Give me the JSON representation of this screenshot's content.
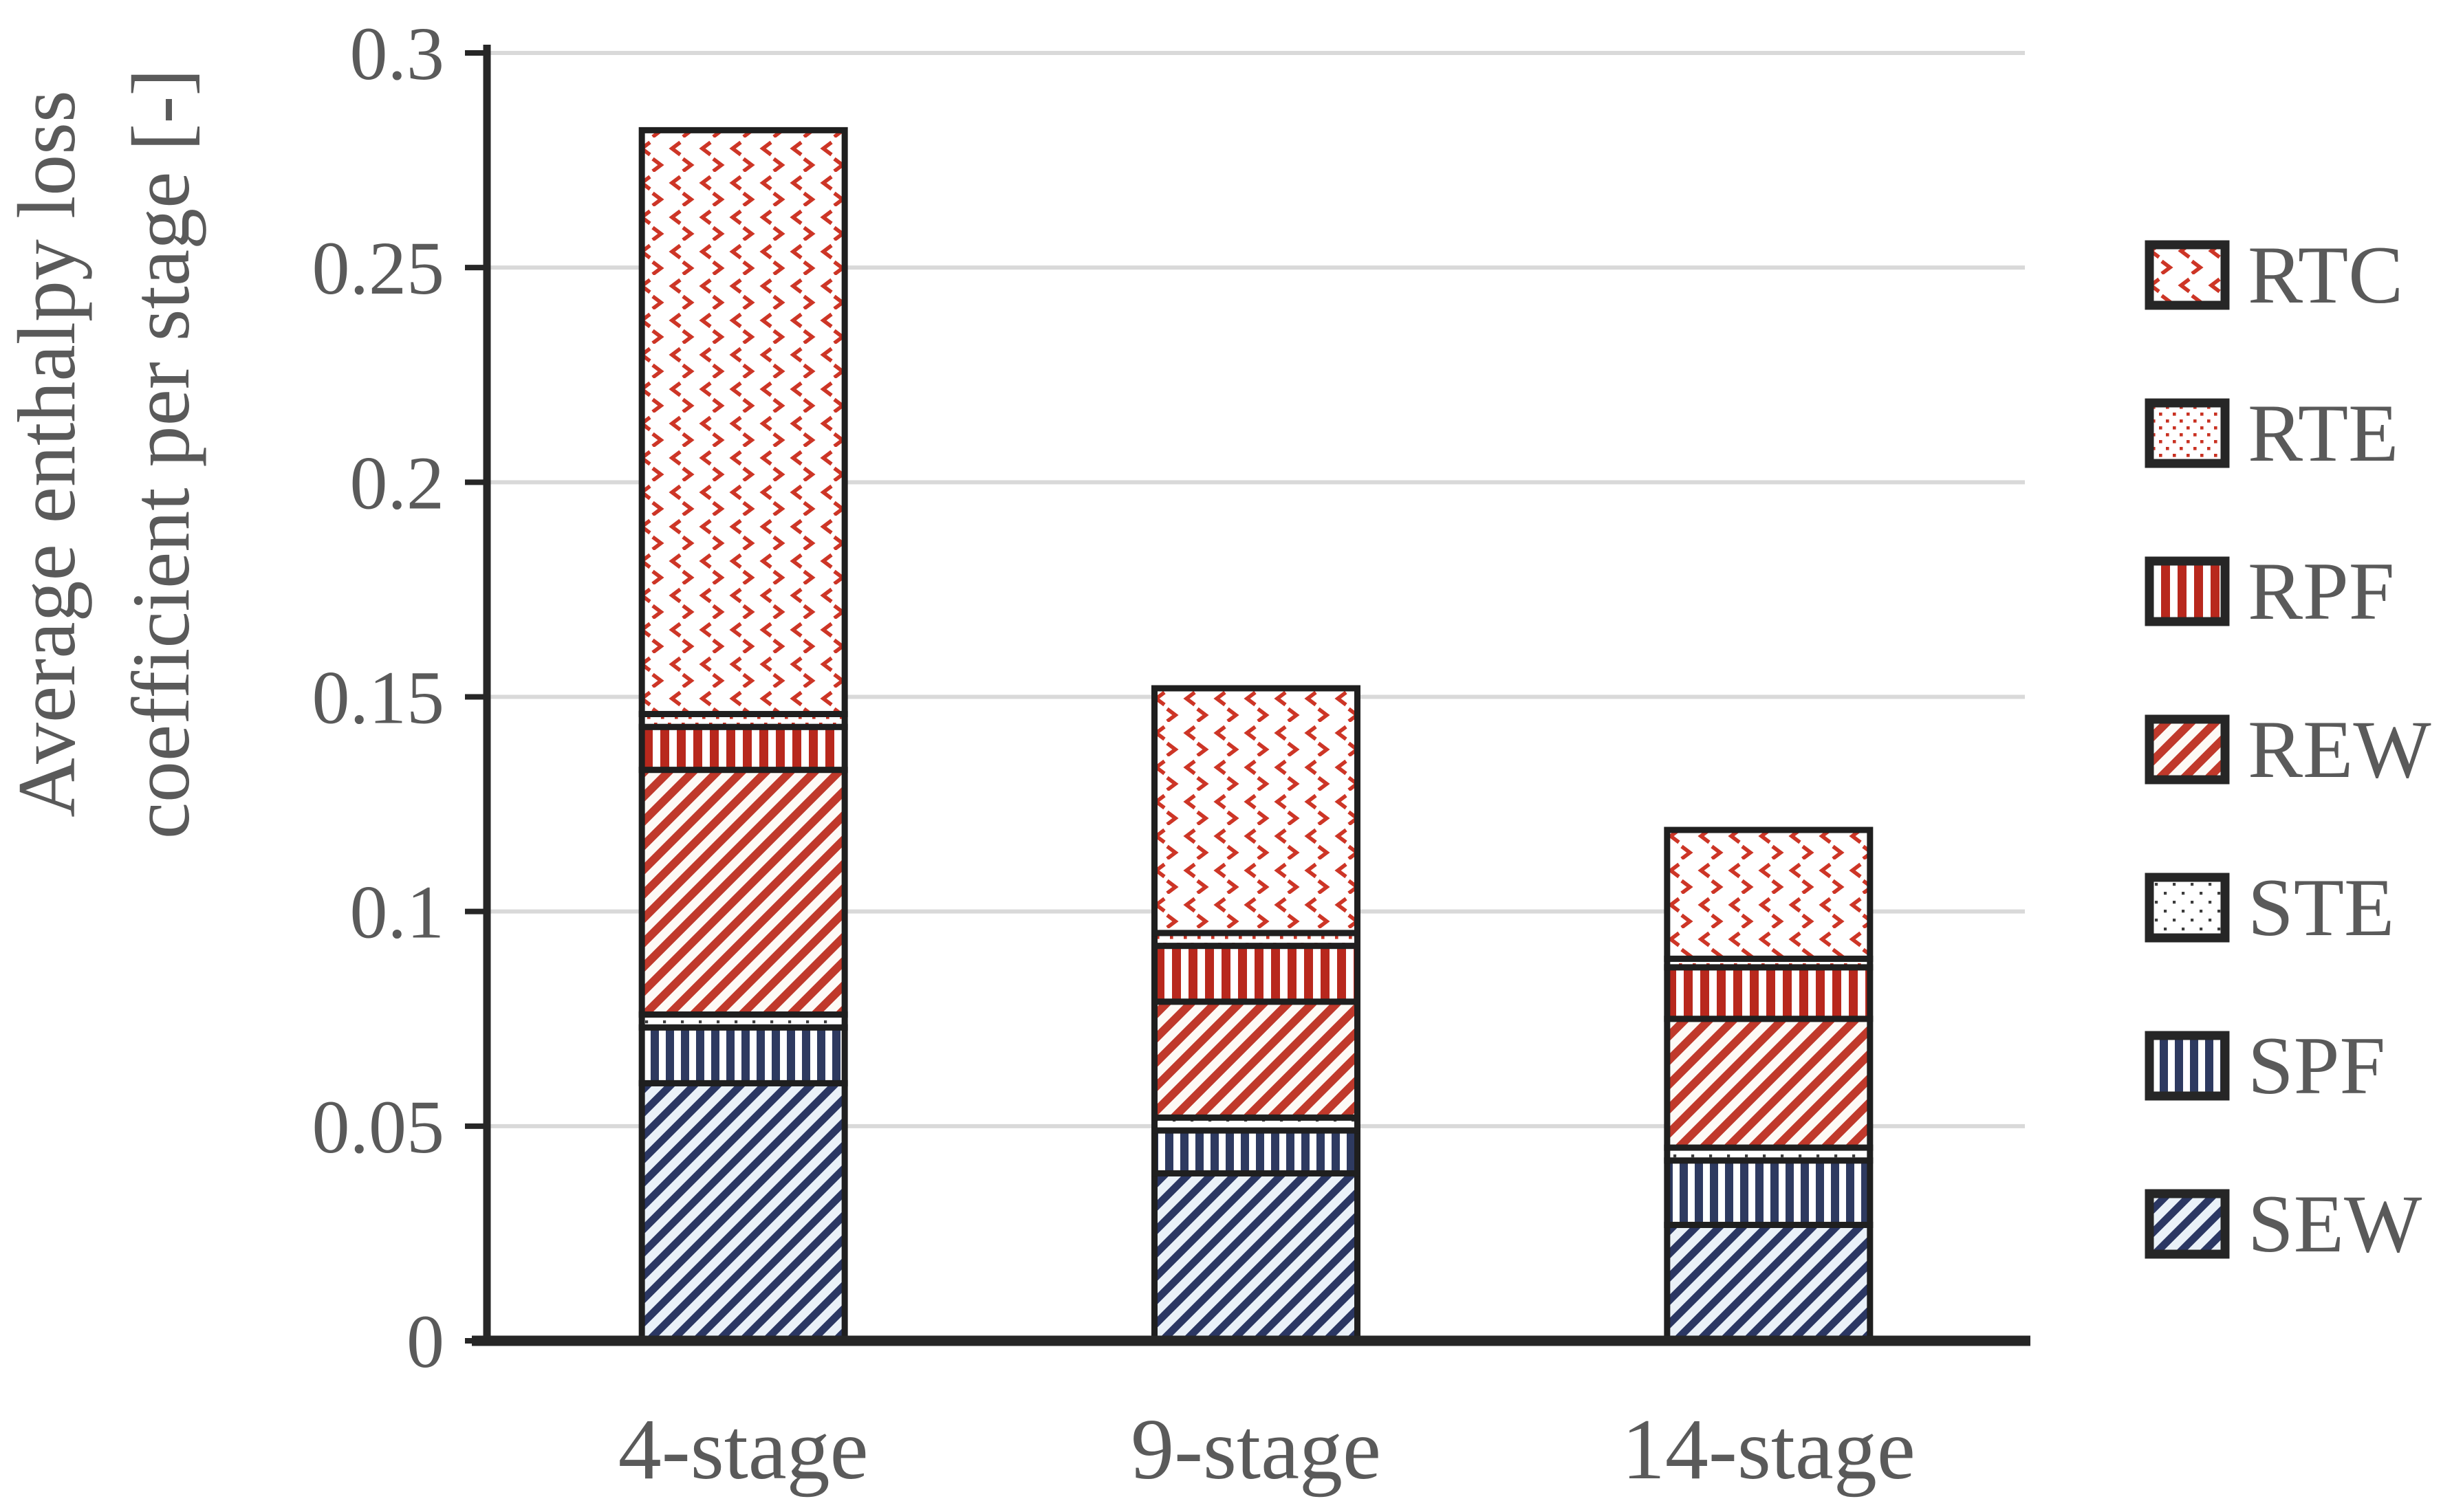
{
  "chart_data": {
    "type": "bar",
    "stacked": true,
    "title": "",
    "xlabel": "",
    "ylabel": "Average enthalpy loss coefficient per stage [-]",
    "ylabel_line1": "Average enthalpy loss",
    "ylabel_line2": "coefficient per stage [-]",
    "categories": [
      "4-stage",
      "9-stage",
      "14-stage"
    ],
    "series": [
      {
        "name": "SEW",
        "pattern": "p-sew",
        "values": [
          0.06,
          0.039,
          0.027
        ]
      },
      {
        "name": "SPF",
        "pattern": "p-spf",
        "values": [
          0.013,
          0.01,
          0.015
        ]
      },
      {
        "name": "STE",
        "pattern": "p-ste",
        "values": [
          0.003,
          0.003,
          0.003
        ]
      },
      {
        "name": "REW",
        "pattern": "p-rew",
        "values": [
          0.057,
          0.027,
          0.03
        ]
      },
      {
        "name": "RPF",
        "pattern": "p-rpf",
        "values": [
          0.01,
          0.013,
          0.012
        ]
      },
      {
        "name": "RTE",
        "pattern": "p-rte",
        "values": [
          0.003,
          0.003,
          0.002
        ]
      },
      {
        "name": "RTC",
        "pattern": "p-rtc",
        "values": [
          0.136,
          0.057,
          0.03
        ]
      }
    ],
    "stack_totals": [
      0.282,
      0.152,
      0.119
    ],
    "ylim": [
      0,
      0.3
    ],
    "ytick_step": 0.05,
    "yticks": [
      "0",
      "0.05",
      "0.1",
      "0.15",
      "0.2",
      "0.25",
      "0.3"
    ],
    "grid": true,
    "legend_position": "right",
    "legend_order_top_to_bottom": [
      "RTC",
      "RTE",
      "RPF",
      "REW",
      "STE",
      "SPF",
      "SEW"
    ]
  },
  "legend": {
    "items": [
      {
        "label": "RTC"
      },
      {
        "label": "RTE"
      },
      {
        "label": "RPF"
      },
      {
        "label": "REW"
      },
      {
        "label": "STE"
      },
      {
        "label": "SPF"
      },
      {
        "label": "SEW"
      }
    ]
  },
  "colors": {
    "pattern_red": "#c23222",
    "pattern_red_bright": "#cd3526",
    "pattern_navy": "#2e3a60",
    "sew_background": "#eaf1f8",
    "text_gray": "#5a5a5a",
    "gridline": "#d9d9d9",
    "axis": "#262626",
    "segment_border": "#1f1f1f",
    "background": "#ffffff"
  }
}
